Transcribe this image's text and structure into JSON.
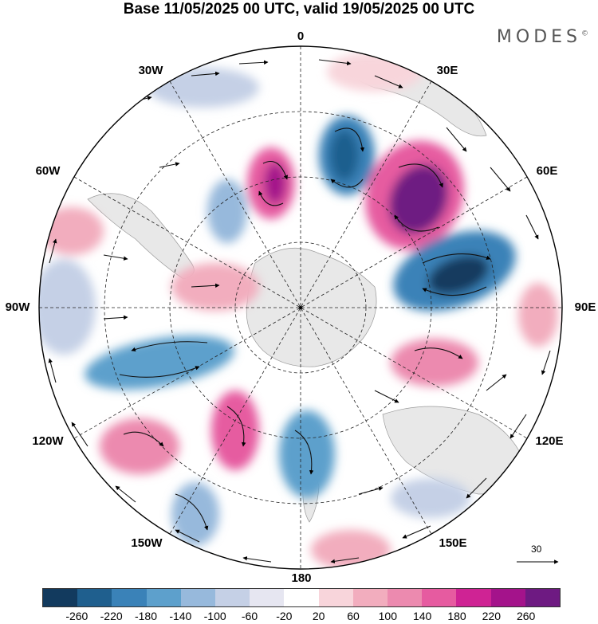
{
  "title": "Base 11/05/2025 00 UTC, valid 19/05/2025 00 UTC",
  "brand": {
    "name": "MODES",
    "mark": "©"
  },
  "longitude_labels": {
    "lon_0": "0",
    "lon_30e": "30E",
    "lon_60e": "60E",
    "lon_90e": "90E",
    "lon_120e": "120E",
    "lon_150e": "150E",
    "lon_180": "180",
    "lon_150w": "150W",
    "lon_120w": "120W",
    "lon_90w": "90W",
    "lon_60w": "60W",
    "lon_30w": "30W"
  },
  "reference_vector": {
    "value": "30"
  },
  "colorbar": {
    "colors": [
      "#123a5e",
      "#1f5f8e",
      "#3a82b8",
      "#5da0cc",
      "#97b9dc",
      "#c5d0e6",
      "#e6e6f1",
      "#ffffff",
      "#f8d5db",
      "#f2adbe",
      "#ec8aaf",
      "#e65ba0",
      "#cf2394",
      "#a4138b",
      "#6e1a82"
    ],
    "labels": [
      "-260",
      "-220",
      "-180",
      "-140",
      "-100",
      "-60",
      "-20",
      "20",
      "60",
      "100",
      "140",
      "180",
      "220",
      "260"
    ]
  }
}
